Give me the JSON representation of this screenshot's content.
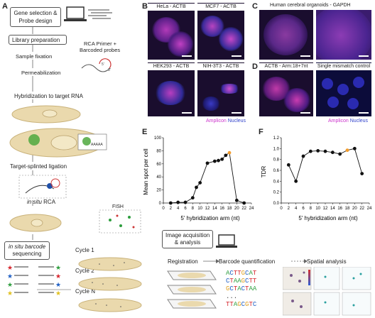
{
  "panelA": {
    "letter": "A",
    "boxes": {
      "gene_selection": "Gene selection &",
      "probe_design": "Probe design",
      "library": "Library preparation",
      "barcode_seq_1": "in situ barcode",
      "barcode_seq_2": "sequencing"
    },
    "steps": {
      "fixation": "Sample fixation",
      "permeabilization": "Permeabilization",
      "hybridization": "Hybridization to target RNA",
      "ligation": "Target-splinted ligation",
      "rca_italic": "in situ",
      "rca": "RCA",
      "fish": "FISH",
      "primer_1": "RCA Primer +",
      "primer_2": "Barcoded probes"
    },
    "cycles": [
      "Cycle 1",
      "Cycle 2",
      "Cycle N"
    ],
    "dots": "..."
  },
  "panelB": {
    "letter": "B",
    "images": [
      "HeLa - ACTB",
      "MCF7 - ACTB",
      "HEK293 - ACTB",
      "NIH-3T3 - ACTB"
    ]
  },
  "panelC": {
    "letter": "C",
    "title": "Human cerebral organoids - GAPDH"
  },
  "panelD": {
    "letter": "D",
    "images": [
      "ACTB - Arm:18+7nt",
      "Single mismatch control"
    ]
  },
  "legend": {
    "amplicon": "Amplicon",
    "nucleus": "Nucleus",
    "amplicon_color": "#cc33cc",
    "nucleus_color": "#3344cc"
  },
  "panelE": {
    "letter": "E",
    "chart_data": {
      "type": "line",
      "x": [
        2,
        4,
        6,
        8,
        9,
        10,
        12,
        14,
        15,
        16,
        17,
        18,
        20,
        22
      ],
      "y": [
        0,
        1,
        1,
        8,
        24,
        31,
        61,
        64,
        65,
        67,
        73,
        77,
        4,
        0
      ],
      "highlight_x": 18,
      "xlabel": "5' hybridization arm (nt)",
      "ylabel": "Mean spot per cell",
      "xticks": [
        0,
        2,
        4,
        6,
        8,
        10,
        12,
        14,
        16,
        18,
        20,
        22,
        24
      ],
      "yticks": [
        0,
        20,
        40,
        60,
        80,
        100
      ],
      "xlim": [
        0,
        24
      ],
      "ylim": [
        0,
        100
      ]
    }
  },
  "panelF": {
    "letter": "F",
    "chart_data": {
      "type": "line",
      "x": [
        2,
        4,
        6,
        8,
        10,
        12,
        14,
        16,
        18,
        20,
        22
      ],
      "y": [
        0.7,
        0.4,
        0.86,
        0.95,
        0.96,
        0.95,
        0.93,
        0.9,
        0.97,
        1.0,
        0.54
      ],
      "highlight_x": 18,
      "xlabel": "5' hybridization arm (nt)",
      "ylabel": "TDR",
      "xticks": [
        0,
        2,
        4,
        6,
        8,
        10,
        12,
        14,
        16,
        18,
        20,
        22,
        24
      ],
      "yticks": [
        "0.0",
        "0.2",
        "0.4",
        "0.6",
        "0.8",
        "1.0",
        "1.2"
      ],
      "xlim": [
        0,
        24
      ],
      "ylim": [
        0,
        1.2
      ]
    }
  },
  "panelG": {
    "image_acq_1": "Image acquisition",
    "image_acq_2": "& analysis",
    "registration": "Registration",
    "barcode_quant": "Barcode quantification",
    "spatial": "Spatial analysis",
    "sequences": [
      "ACTTGCAT",
      "CTAAGCTT",
      "GCTACTAA",
      "...",
      "TTAGCGTC"
    ],
    "base_colors": {
      "A": "#2e9e3e",
      "C": "#1f5fc4",
      "G": "#e0a020",
      "T": "#d6262e"
    }
  }
}
